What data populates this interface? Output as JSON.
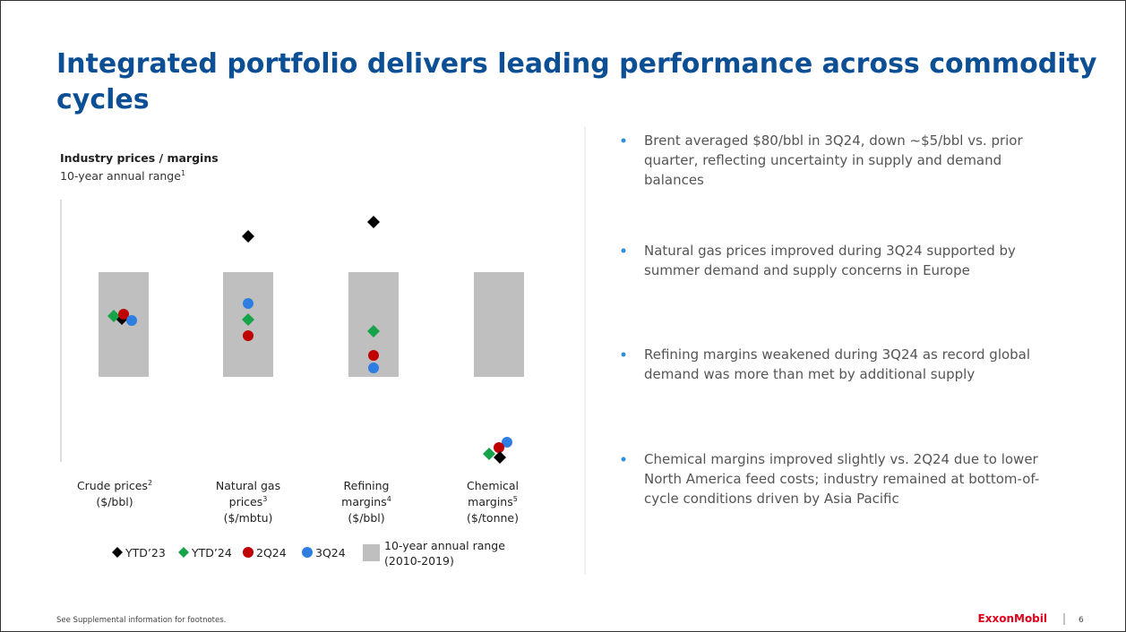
{
  "title": "Integrated portfolio delivers leading performance across commodity cycles",
  "chart": {
    "heading": "Industry prices / margins",
    "subheading": "10-year annual range",
    "subheading_sup": "1",
    "categories": [
      {
        "lines": [
          "Crude prices",
          "($/bbl)"
        ],
        "sup": "2"
      },
      {
        "lines": [
          "Natural gas",
          "prices",
          "($/mbtu)"
        ],
        "sup": "3"
      },
      {
        "lines": [
          "Refining",
          "margins",
          "($/bbl)"
        ],
        "sup": "4"
      },
      {
        "lines": [
          "Chemical",
          "margins",
          "($/tonne)"
        ],
        "sup": "5"
      }
    ],
    "legend": [
      "YTD’23",
      "YTD’24",
      "2Q24",
      "3Q24",
      "10-year annual range",
      "(2010-2019)"
    ]
  },
  "bullets": [
    [
      "Brent averaged $80/bbl in 3Q24, down ~$5/bbl vs. prior",
      "quarter, reflecting uncertainty in supply and demand",
      "balances"
    ],
    [
      "Natural gas prices improved during 3Q24 supported by",
      "summer demand and supply concerns in Europe"
    ],
    [
      "Refining margins weakened during 3Q24 as record global",
      "demand was more than met by additional supply"
    ],
    [
      "Chemical margins improved slightly vs. 2Q24 due to lower",
      "North America feed costs; industry remained at bottom-of-",
      "cycle conditions driven by Asia Pacific"
    ]
  ],
  "footer": "See Supplemental information for footnotes.",
  "logo": "ExxonMobil",
  "page_number": "6"
}
